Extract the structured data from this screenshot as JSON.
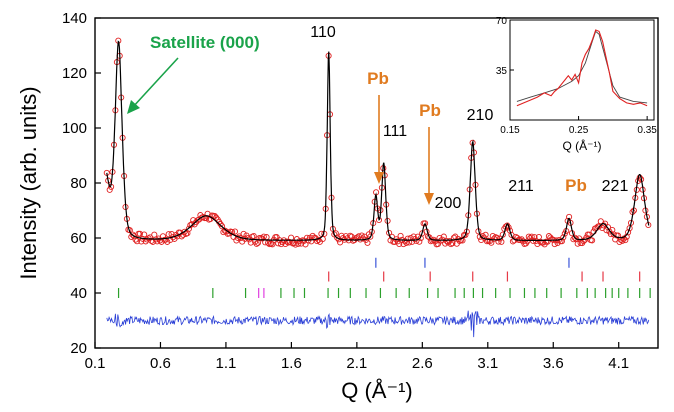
{
  "chart_data": [
    {
      "type": "scatter",
      "xlabel": "Q (Å⁻¹)",
      "ylabel": "Intensity (arb. units)",
      "xlim": [
        0.1,
        4.4
      ],
      "ylim": [
        20,
        140
      ],
      "x_ticks": [
        "0.1",
        "0.6",
        "1.1",
        "1.6",
        "2.1",
        "2.6",
        "3.1",
        "3.6",
        "4.1"
      ],
      "y_ticks": [
        "20",
        "40",
        "60",
        "80",
        "100",
        "120",
        "140"
      ],
      "colors": {
        "observed": "#e02020",
        "fit": "#000000",
        "difference": "#2a3fd6",
        "tick_green": "#2ca02c",
        "tick_red": "#e63946",
        "tick_blue": "#3b55d9",
        "tick_magenta": "#e040e0"
      },
      "profile_peaks": [
        {
          "center": 0.28,
          "height": 72,
          "width": 0.028
        },
        {
          "center": 0.95,
          "height": 9,
          "width": 0.12
        },
        {
          "center": 1.885,
          "height": 69,
          "width": 0.012
        },
        {
          "center": 2.245,
          "height": 16,
          "width": 0.015
        },
        {
          "center": 2.305,
          "height": 28,
          "width": 0.016
        },
        {
          "center": 2.62,
          "height": 6,
          "width": 0.018
        },
        {
          "center": 2.985,
          "height": 36,
          "width": 0.02
        },
        {
          "center": 3.25,
          "height": 6,
          "width": 0.02
        },
        {
          "center": 3.72,
          "height": 8,
          "width": 0.02
        },
        {
          "center": 3.98,
          "height": 6,
          "width": 0.05
        },
        {
          "center": 4.26,
          "height": 24,
          "width": 0.04
        }
      ],
      "background_level": 59,
      "difference_curve_level": 30,
      "series": [
        {
          "name": "observed",
          "style": "open-circles"
        },
        {
          "name": "fit",
          "style": "line"
        },
        {
          "name": "difference",
          "style": "line"
        }
      ],
      "reflection_ticks": {
        "blue": {
          "y": 51,
          "x": [
            2.245,
            2.62,
            3.72
          ]
        },
        "red": {
          "y": 46,
          "x": [
            1.885,
            2.305,
            2.66,
            2.985,
            3.25,
            3.82,
            3.98,
            4.26
          ]
        },
        "magenta": {
          "y": 40,
          "x": [
            1.35,
            1.39
          ]
        },
        "green": {
          "y": 40,
          "x": [
            0.28,
            1.0,
            1.25,
            1.52,
            1.62,
            1.7,
            1.88,
            1.96,
            2.05,
            2.17,
            2.28,
            2.4,
            2.5,
            2.64,
            2.72,
            2.85,
            2.92,
            2.99,
            3.06,
            3.16,
            3.27,
            3.38,
            3.46,
            3.55,
            3.66,
            3.78,
            3.86,
            3.92,
            4.0,
            4.05,
            4.1,
            4.17,
            4.26,
            4.34
          ]
        }
      },
      "annotations": [
        {
          "text": "Satellite (000)"
        },
        {
          "text": "110"
        },
        {
          "text": "Pb"
        },
        {
          "text": "111"
        },
        {
          "text": "Pb"
        },
        {
          "text": "200"
        },
        {
          "text": "210"
        },
        {
          "text": "211"
        },
        {
          "text": "Pb"
        },
        {
          "text": "221"
        }
      ]
    },
    {
      "type": "line",
      "xlabel": "Q (Å⁻¹)",
      "xlim": [
        0.15,
        0.36
      ],
      "ylim": [
        0,
        70
      ],
      "x_ticks": [
        "0.15",
        "0.25",
        "0.35"
      ],
      "y_ticks": [
        "35",
        "70"
      ],
      "grid": false,
      "series": [
        {
          "name": "observed",
          "color": "#e02020",
          "x": [
            0.16,
            0.17,
            0.18,
            0.19,
            0.2,
            0.21,
            0.215,
            0.22,
            0.225,
            0.23,
            0.235,
            0.24,
            0.245,
            0.25,
            0.255,
            0.26,
            0.265,
            0.27,
            0.275,
            0.28,
            0.285,
            0.29,
            0.295,
            0.3,
            0.31,
            0.32,
            0.33,
            0.34,
            0.35
          ],
          "y": [
            10,
            12,
            14,
            16,
            19,
            17,
            20,
            22,
            25,
            28,
            31,
            28,
            32,
            26,
            40,
            46,
            50,
            56,
            63,
            62,
            55,
            44,
            33,
            20,
            15,
            12,
            11,
            12,
            10
          ]
        },
        {
          "name": "fit",
          "color": "#444444",
          "x": [
            0.16,
            0.18,
            0.2,
            0.22,
            0.24,
            0.25,
            0.26,
            0.27,
            0.275,
            0.28,
            0.29,
            0.3,
            0.31,
            0.33,
            0.35
          ],
          "y": [
            13,
            16,
            19,
            22,
            27,
            31,
            40,
            55,
            62,
            60,
            42,
            24,
            16,
            13,
            12
          ]
        }
      ]
    }
  ]
}
